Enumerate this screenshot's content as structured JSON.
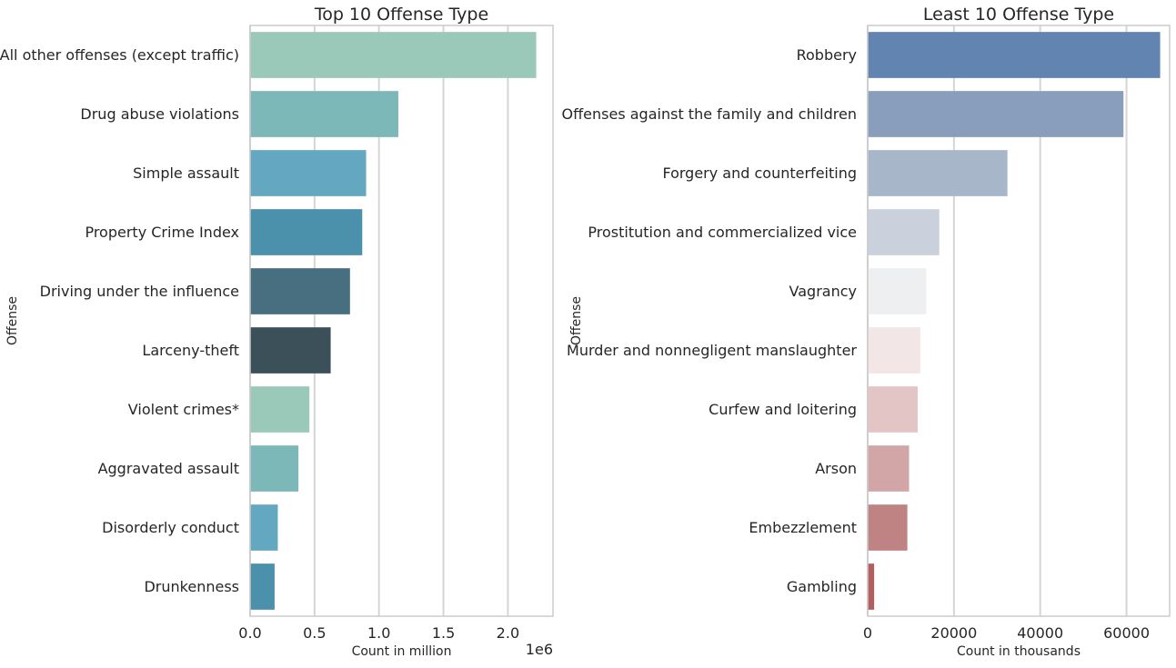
{
  "chart_data": [
    {
      "type": "bar",
      "orientation": "horizontal",
      "title": "Top 10 Offense Type",
      "xlabel": "Count in million",
      "ylabel": "Offense",
      "offset_text": "1e6",
      "xlim": [
        0,
        2350000
      ],
      "xticks": [
        0,
        500000,
        1000000,
        1500000,
        2000000
      ],
      "xtick_labels": [
        "0.0",
        "0.5",
        "1.0",
        "1.5",
        "2.0"
      ],
      "grid": "vertical",
      "categories": [
        "All other offenses (except traffic)",
        "Drug abuse violations",
        "Simple assault",
        "Property Crime Index",
        "Driving under the influence",
        "Larceny-theft",
        "Violent crimes*",
        "Aggravated assault",
        "Disorderly conduct",
        "Drunkenness"
      ],
      "values": [
        2220000,
        1150000,
        900000,
        870000,
        775000,
        625000,
        460000,
        375000,
        215000,
        190000
      ],
      "colors": [
        "#9bc9b9",
        "#7db8b9",
        "#63a8c0",
        "#4c91ab",
        "#476f80",
        "#3b5059",
        "#9bc9b9",
        "#7db8b9",
        "#63a8c0",
        "#4c91ab"
      ]
    },
    {
      "type": "bar",
      "orientation": "horizontal",
      "title": "Least 10 Offense Type",
      "xlabel": "Count in thousands",
      "ylabel": "Offense",
      "xlim": [
        0,
        70000
      ],
      "xticks": [
        0,
        20000,
        40000,
        60000
      ],
      "xtick_labels": [
        "0",
        "20000",
        "40000",
        "60000"
      ],
      "grid": "vertical",
      "categories": [
        "Robbery",
        "Offenses against the family and children",
        "Forgery and counterfeiting",
        "Prostitution and commercialized vice",
        "Vagrancy",
        "Murder and nonnegligent manslaughter",
        "Curfew and loitering",
        "Arson",
        "Embezzlement",
        "Gambling"
      ],
      "values": [
        67800,
        59300,
        32400,
        16600,
        13600,
        12200,
        11600,
        9600,
        9200,
        1500
      ],
      "colors": [
        "#6284b0",
        "#899ebd",
        "#a8b6ca",
        "#cbd1dc",
        "#eeeff1",
        "#f3e6e6",
        "#e3c5c6",
        "#d2a6a6",
        "#c08383",
        "#b55e60"
      ]
    }
  ]
}
